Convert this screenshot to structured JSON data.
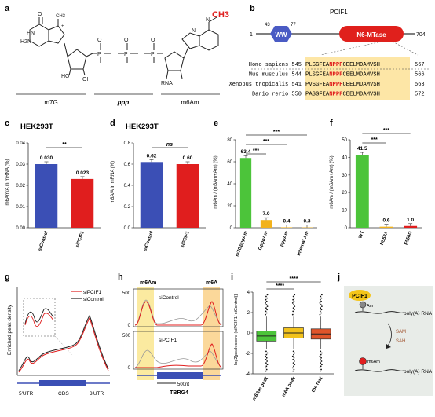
{
  "panel_labels": [
    "a",
    "b",
    "c",
    "d",
    "e",
    "f",
    "g",
    "h",
    "i",
    "j"
  ],
  "a": {
    "methyl_label": "CH3",
    "caps": [
      "m7G",
      "ppp",
      "m6Am"
    ],
    "atoms": {
      "methyl_n7": "CH3",
      "p": "P",
      "rna": "RNA",
      "o": "O",
      "ho": "HO",
      "oh": "OH",
      "h2n": "H2N",
      "hn": "HN",
      "n": "N",
      "plus": "+"
    }
  },
  "b": {
    "protein": "PCIF1",
    "length_start": "1",
    "length_end": "704",
    "ww_start": "43",
    "ww_end": "77",
    "ww_label": "WW",
    "mtase_label": "N6-MTase",
    "alignment": [
      {
        "species": "Homo sapiens",
        "start": "545",
        "seq_pre": "PLSGFEA",
        "seq_motif": "NPPF",
        "seq_post": "CEELMDAMVSH",
        "end": "567"
      },
      {
        "species": "Mus musculus",
        "start": "544",
        "seq_pre": "PLSGFEA",
        "seq_motif": "NPPF",
        "seq_post": "CEELMDAMVSH",
        "end": "566"
      },
      {
        "species": "Xenopus tropicalis",
        "start": "541",
        "seq_pre": "PVSGFEA",
        "seq_motif": "NPPF",
        "seq_post": "CEELMDAMVSH",
        "end": "563"
      },
      {
        "species": "Danio rerio",
        "start": "550",
        "seq_pre": "PASGFEA",
        "seq_motif": "NPPF",
        "seq_post": "CEELMDAMVSH",
        "end": "572"
      }
    ]
  },
  "c": {
    "title": "HEK293T",
    "ylabel": "m6Am/A in mRNA (%)",
    "sig": "**",
    "chart_data": {
      "type": "bar",
      "categories": [
        "siControl",
        "siPCIF1"
      ],
      "values": [
        0.03,
        0.023
      ],
      "value_labels": [
        "0.030",
        "0.023"
      ],
      "ylim": [
        0,
        0.04
      ],
      "yticks": [
        "0.00",
        "0.01",
        "0.02",
        "0.03",
        "0.04"
      ],
      "colors": [
        "#3b4fb5",
        "#e01e1e"
      ]
    }
  },
  "d": {
    "title": "HEK293T",
    "ylabel": "m6A/A in mRNA (%)",
    "sig": "ns",
    "chart_data": {
      "type": "bar",
      "categories": [
        "siControl",
        "siPCIF1"
      ],
      "values": [
        0.62,
        0.6
      ],
      "value_labels": [
        "0.62",
        "0.60"
      ],
      "ylim": [
        0,
        0.8
      ],
      "yticks": [
        "0.0",
        "0.2",
        "0.4",
        "0.6",
        "0.8"
      ],
      "colors": [
        "#3b4fb5",
        "#e01e1e"
      ]
    }
  },
  "e": {
    "ylabel": "m6Am / (m6Am+Am) (%)",
    "sigs": [
      "***",
      "***",
      "***"
    ],
    "chart_data": {
      "type": "bar",
      "categories": [
        "m7GpppAm",
        "GpppAm",
        "pppAm",
        "Internal Am"
      ],
      "values": [
        63.4,
        7.0,
        0.4,
        0.3
      ],
      "value_labels": [
        "63.4",
        "7.0",
        "0.4",
        "0.3"
      ],
      "ylim": [
        0,
        80
      ],
      "yticks": [
        "0",
        "20",
        "40",
        "60",
        "80"
      ],
      "colors": [
        "#4cc43a",
        "#f2b21c",
        "#f2b21c",
        "#f2b21c"
      ]
    }
  },
  "f": {
    "ylabel": "m6Am / (m6Am+Am) (%)",
    "sigs": [
      "***",
      "***"
    ],
    "chart_data": {
      "type": "bar",
      "categories": [
        "WT",
        "N553A",
        "F556G"
      ],
      "values": [
        41.5,
        0.6,
        1.0
      ],
      "value_labels": [
        "41.5",
        "0.6",
        "1.0"
      ],
      "ylim": [
        0,
        50
      ],
      "yticks": [
        "0",
        "10",
        "20",
        "30",
        "40",
        "50"
      ],
      "colors": [
        "#4cc43a",
        "#f2b21c",
        "#e01e1e"
      ]
    }
  },
  "g": {
    "ylabel": "Enriched peak density",
    "legend": [
      "siPCIF1",
      "siControl"
    ],
    "regions": [
      "5'UTR",
      "CDS",
      "3'UTR"
    ],
    "colors": {
      "siPCIF1": "#e01e1e",
      "siControl": "#222222"
    }
  },
  "h": {
    "marks": [
      "m6Am",
      "m6A"
    ],
    "tracks": [
      {
        "label": "siControl",
        "ymax": "500"
      },
      {
        "label": "siPCIF1",
        "ymax": "500"
      }
    ],
    "zero": "0",
    "scale": "500nt",
    "gene": "TBRG4"
  },
  "i": {
    "ylabel": "log2[peak score (siPCIF1/ siControl)]",
    "sigs": [
      "****",
      "****"
    ],
    "yticks": [
      "-4",
      "-2",
      "0",
      "2",
      "4"
    ],
    "chart_data": {
      "type": "box",
      "categories": [
        "m6Am peak",
        "m6A peak",
        "the rest"
      ],
      "medians": [
        -0.3,
        0.0,
        -0.1
      ],
      "colors": [
        "#4cc43a",
        "#f2c21c",
        "#e0542a"
      ]
    }
  },
  "j": {
    "enzyme": "PCIF1",
    "before": "Am",
    "after": "m6Am",
    "rna": "poly(A) RNA",
    "sam": "SAM",
    "sah": "SAH"
  }
}
